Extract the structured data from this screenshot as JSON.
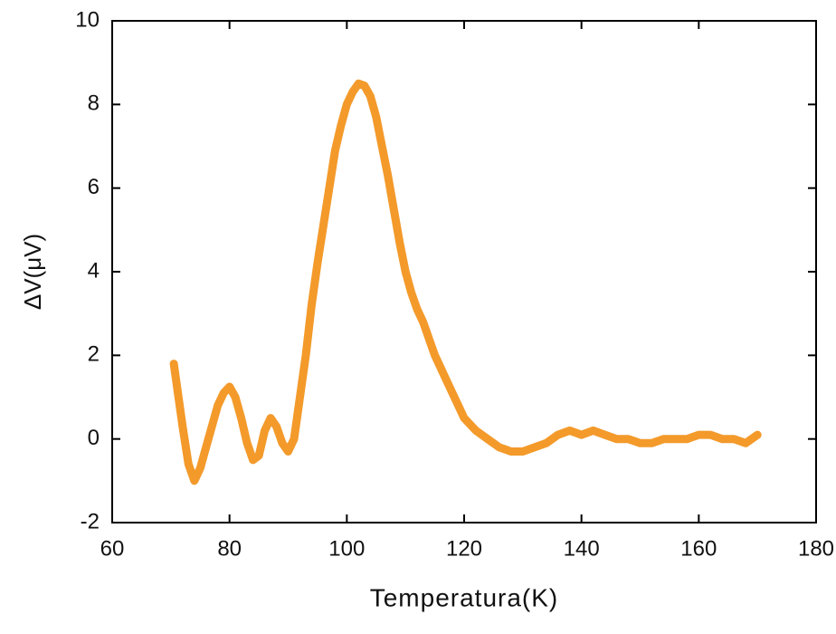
{
  "chart_data": {
    "type": "line",
    "x_label": "Temperatura(K)",
    "y_label": "ΔV(μV)",
    "x": [
      70.5,
      72,
      73,
      74,
      75,
      76,
      77,
      78,
      79,
      80,
      81,
      82,
      83,
      84,
      85,
      86,
      87,
      88,
      89,
      90,
      91,
      92,
      93,
      94,
      95,
      96,
      97,
      98,
      99,
      100,
      101,
      102,
      103,
      104,
      105,
      106,
      107,
      108,
      109,
      110,
      111,
      112,
      113,
      114,
      115,
      116,
      117,
      118,
      119,
      120,
      122,
      124,
      126,
      128,
      130,
      132,
      134,
      136,
      138,
      140,
      142,
      144,
      146,
      148,
      150,
      152,
      154,
      156,
      158,
      160,
      162,
      164,
      166,
      168,
      170
    ],
    "values": [
      1.8,
      0.3,
      -0.6,
      -1.0,
      -0.7,
      -0.2,
      0.3,
      0.8,
      1.1,
      1.25,
      1.0,
      0.5,
      -0.1,
      -0.5,
      -0.4,
      0.2,
      0.5,
      0.3,
      -0.1,
      -0.3,
      0.0,
      1.0,
      2.0,
      3.2,
      4.2,
      5.1,
      6.0,
      6.9,
      7.5,
      8.0,
      8.3,
      8.5,
      8.45,
      8.2,
      7.7,
      7.0,
      6.3,
      5.5,
      4.7,
      4.0,
      3.5,
      3.1,
      2.8,
      2.4,
      2.0,
      1.7,
      1.4,
      1.1,
      0.8,
      0.5,
      0.2,
      0.0,
      -0.2,
      -0.3,
      -0.3,
      -0.2,
      -0.1,
      0.1,
      0.2,
      0.1,
      0.2,
      0.1,
      0.0,
      0.0,
      -0.1,
      -0.1,
      0.0,
      0.0,
      0.0,
      0.1,
      0.1,
      0.0,
      0.0,
      -0.1,
      0.1
    ],
    "color": "#f39a2b",
    "xlim": [
      60,
      180
    ],
    "xticks": [
      60,
      80,
      100,
      120,
      140,
      160,
      180
    ],
    "ylim": [
      -2,
      10
    ],
    "yticks": [
      -2,
      0,
      2,
      4,
      6,
      8,
      10
    ]
  }
}
